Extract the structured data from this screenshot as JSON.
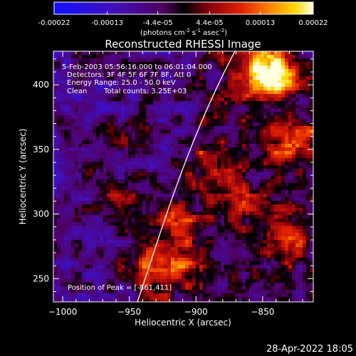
{
  "chart_data": {
    "type": "heatmap",
    "title": "Reconstructed RHESSI Image",
    "xlabel": "Heliocentric X (arcsec)",
    "ylabel": "Heliocentric Y (arcsec)",
    "xlim": [
      -1007,
      -812
    ],
    "ylim": [
      232,
      426
    ],
    "xticks": [
      -1000,
      -950,
      -900,
      -850
    ],
    "yticks": [
      250,
      300,
      350,
      400
    ],
    "colorbar": {
      "ticks": [
        "-0.00022",
        "-0.00013",
        "-4.4e-05",
        "4.4e-05",
        "0.00013",
        "0.00022"
      ],
      "label_main": "(photons cm",
      "label_sup1": "-2",
      "label_mid1": " s",
      "label_sup2": "-1",
      "label_mid2": " asec",
      "label_sup3": "-2",
      "label_end": ")",
      "min": -0.00022,
      "max": 0.00022
    },
    "annotations": {
      "time": "5-Feb-2003 05:56:16.000 to 06:01:04.000",
      "detectors": "Detectors: 3F 4F 5F 6F 7F 8F, Att 0",
      "energy": "Energy Range: 25.0 - 50.0 keV",
      "clean": "Clean",
      "counts": "Total counts: 3.25E+03",
      "peak": "Position of Peak = [-861,411]"
    },
    "limb": true
  },
  "footer": {
    "timestamp": "28-Apr-2022 18:05"
  }
}
